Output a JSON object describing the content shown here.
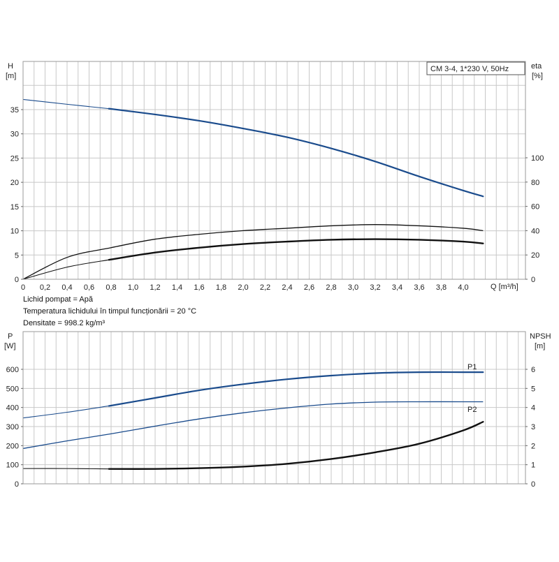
{
  "chart_data": [
    {
      "type": "line",
      "title": "CM 3-4, 1*230 V, 50Hz",
      "xlabel": "Q [m³/h]",
      "ylabel_left": [
        "H",
        "[m]"
      ],
      "ylabel_right": [
        "eta",
        "[%]"
      ],
      "xlim": [
        0,
        4.2
      ],
      "ylim_left": [
        0,
        40
      ],
      "ylim_right": [
        0,
        140
      ],
      "x_ticks": [
        0,
        0.2,
        0.4,
        0.6,
        0.8,
        1.0,
        1.2,
        1.4,
        1.6,
        1.8,
        2.0,
        2.2,
        2.4,
        2.6,
        2.8,
        3.0,
        3.2,
        3.4,
        3.6,
        3.8,
        4.0
      ],
      "x_tick_labels": [
        "0",
        "0,2",
        "0,4",
        "0,6",
        "0,8",
        "1,0",
        "1,2",
        "1,4",
        "1,6",
        "1,8",
        "2,0",
        "2,2",
        "2,4",
        "2,6",
        "2,8",
        "3,0",
        "3,2",
        "3,4",
        "3,6",
        "3,8",
        "4,0"
      ],
      "y_left_ticks": [
        0,
        5,
        10,
        15,
        20,
        25,
        30,
        35
      ],
      "y_right_ticks": [
        0,
        20,
        40,
        60,
        80,
        100
      ],
      "grid": true,
      "series": [
        {
          "axis": "left",
          "color": "#1a4b8c",
          "width": 2.2,
          "dashed_until": 0.78,
          "x": [
            0,
            0.4,
            0.78,
            1.2,
            1.6,
            2.0,
            2.4,
            2.8,
            3.2,
            3.6,
            4.0,
            4.18
          ],
          "y": [
            37.1,
            36.1,
            35.2,
            34.0,
            32.7,
            31.1,
            29.3,
            27.0,
            24.3,
            21.2,
            18.3,
            17.1
          ]
        },
        {
          "axis": "right",
          "color": "#111111",
          "width": 1.3,
          "dashed_until": 0,
          "x": [
            0,
            0.4,
            0.8,
            1.2,
            1.6,
            2.0,
            2.4,
            2.8,
            3.2,
            3.6,
            4.0,
            4.18
          ],
          "y": [
            0,
            18,
            26,
            33,
            37,
            40,
            42,
            44,
            45,
            44,
            42,
            40
          ]
        },
        {
          "axis": "right",
          "color": "#111111",
          "width": 2.4,
          "dashed_until": 0.78,
          "x": [
            0,
            0.4,
            0.78,
            1.2,
            1.6,
            2.0,
            2.4,
            2.8,
            3.2,
            3.6,
            4.0,
            4.18
          ],
          "y": [
            0,
            10,
            16,
            22,
            26,
            29,
            31,
            32.5,
            33,
            32.5,
            31,
            29.5
          ]
        }
      ],
      "notes": [
        "Lichid pompat = Apă",
        "Temperatura lichidului în timpul funcționării = 20 °C",
        "Densitate = 998.2 kg/m³"
      ]
    },
    {
      "type": "line",
      "ylabel_left": [
        "P",
        "[W]"
      ],
      "ylabel_right": [
        "NPSH",
        "[m]"
      ],
      "xlim": [
        0,
        4.2
      ],
      "ylim_left": [
        0,
        700
      ],
      "ylim_right": [
        0,
        7
      ],
      "y_left_ticks": [
        0,
        100,
        200,
        300,
        400,
        500,
        600
      ],
      "y_right_ticks": [
        0,
        1,
        2,
        3,
        4,
        5,
        6
      ],
      "grid": true,
      "series": [
        {
          "name": "P1",
          "axis": "left",
          "color": "#1a4b8c",
          "width": 2.2,
          "dashed_until": 0.78,
          "x": [
            0,
            0.4,
            0.78,
            1.2,
            1.6,
            2.0,
            2.4,
            2.8,
            3.2,
            3.6,
            4.0,
            4.18
          ],
          "y": [
            345,
            375,
            408,
            450,
            490,
            522,
            548,
            567,
            580,
            585,
            585,
            585
          ]
        },
        {
          "name": "P2",
          "axis": "left",
          "color": "#1a4b8c",
          "width": 1.3,
          "dashed_until": 0,
          "x": [
            0,
            0.4,
            0.8,
            1.2,
            1.6,
            2.0,
            2.4,
            2.8,
            3.2,
            3.6,
            4.0,
            4.18
          ],
          "y": [
            185,
            225,
            262,
            302,
            340,
            372,
            398,
            418,
            428,
            430,
            430,
            430
          ]
        },
        {
          "axis": "right",
          "color": "#111111",
          "width": 2.4,
          "dashed_until": 0.78,
          "x": [
            0,
            0.4,
            0.78,
            1.2,
            1.6,
            2.0,
            2.4,
            2.8,
            3.2,
            3.6,
            4.0,
            4.18
          ],
          "y": [
            0.8,
            0.8,
            0.78,
            0.78,
            0.82,
            0.9,
            1.05,
            1.3,
            1.65,
            2.1,
            2.8,
            3.25
          ]
        }
      ]
    }
  ]
}
